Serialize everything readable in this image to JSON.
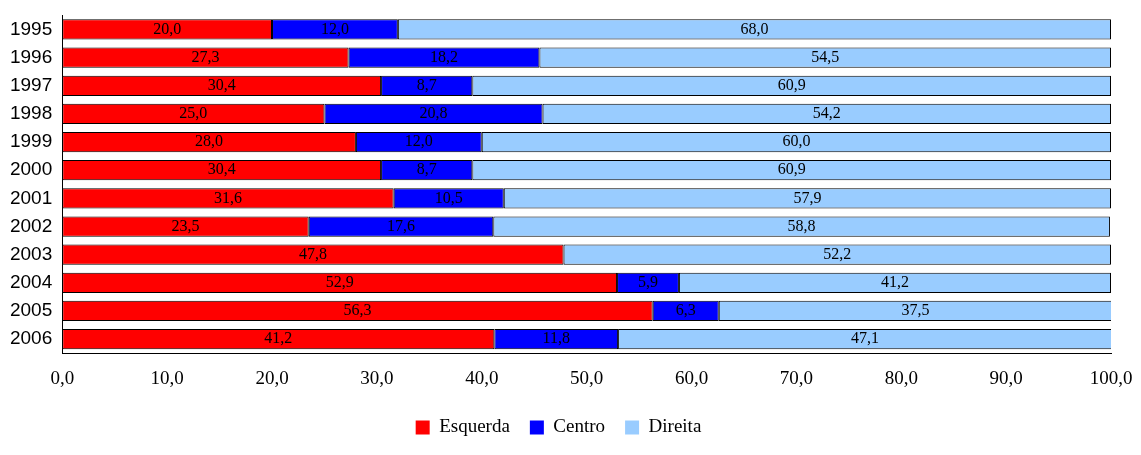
{
  "chart_data": {
    "type": "bar",
    "orientation": "horizontal",
    "stacked": true,
    "legend": "bottom",
    "grid": false,
    "categories": [
      "1995",
      "1996",
      "1997",
      "1998",
      "1999",
      "2000",
      "2001",
      "2002",
      "2003",
      "2004",
      "2005",
      "2006"
    ],
    "series": [
      {
        "name": "Esquerda",
        "color": "#ff0000",
        "values": [
          20.0,
          27.3,
          30.4,
          25.0,
          28.0,
          30.4,
          31.6,
          23.5,
          47.8,
          52.9,
          56.3,
          41.2
        ],
        "value_labels": [
          "20,0",
          "27,3",
          "30,4",
          "25,0",
          "28,0",
          "30,4",
          "31,6",
          "23,5",
          "47,8",
          "52,9",
          "56,3",
          "41,2"
        ]
      },
      {
        "name": "Centro",
        "color": "#0000ff",
        "values": [
          12.0,
          18.2,
          8.7,
          20.8,
          12.0,
          8.7,
          10.5,
          17.6,
          null,
          5.9,
          6.3,
          11.8
        ],
        "value_labels": [
          "12,0",
          "18,2",
          "8,7",
          "20,8",
          "12,0",
          "8,7",
          "10,5",
          "17,6",
          null,
          "5,9",
          "6,3",
          "11,8"
        ]
      },
      {
        "name": "Direita",
        "color": "#99ccff",
        "values": [
          68.0,
          54.5,
          60.9,
          54.2,
          60.0,
          60.9,
          57.9,
          58.8,
          52.2,
          41.2,
          37.5,
          47.1
        ],
        "value_labels": [
          "68,0",
          "54,5",
          "60,9",
          "54,2",
          "60,0",
          "60,9",
          "57,9",
          "58,8",
          "52,2",
          "41,2",
          "37,5",
          "47,1"
        ]
      }
    ],
    "xlim": [
      0,
      100
    ],
    "xticks": [
      {
        "value": 0,
        "label": "0,0"
      },
      {
        "value": 10,
        "label": "10,0"
      },
      {
        "value": 20,
        "label": "20,0"
      },
      {
        "value": 30,
        "label": "30,0"
      },
      {
        "value": 40,
        "label": "40,0"
      },
      {
        "value": 50,
        "label": "50,0"
      },
      {
        "value": 60,
        "label": "60,0"
      },
      {
        "value": 70,
        "label": "70,0"
      },
      {
        "value": 80,
        "label": "80,0"
      },
      {
        "value": 90,
        "label": "90,0"
      },
      {
        "value": 100,
        "label": "100,0"
      }
    ]
  }
}
